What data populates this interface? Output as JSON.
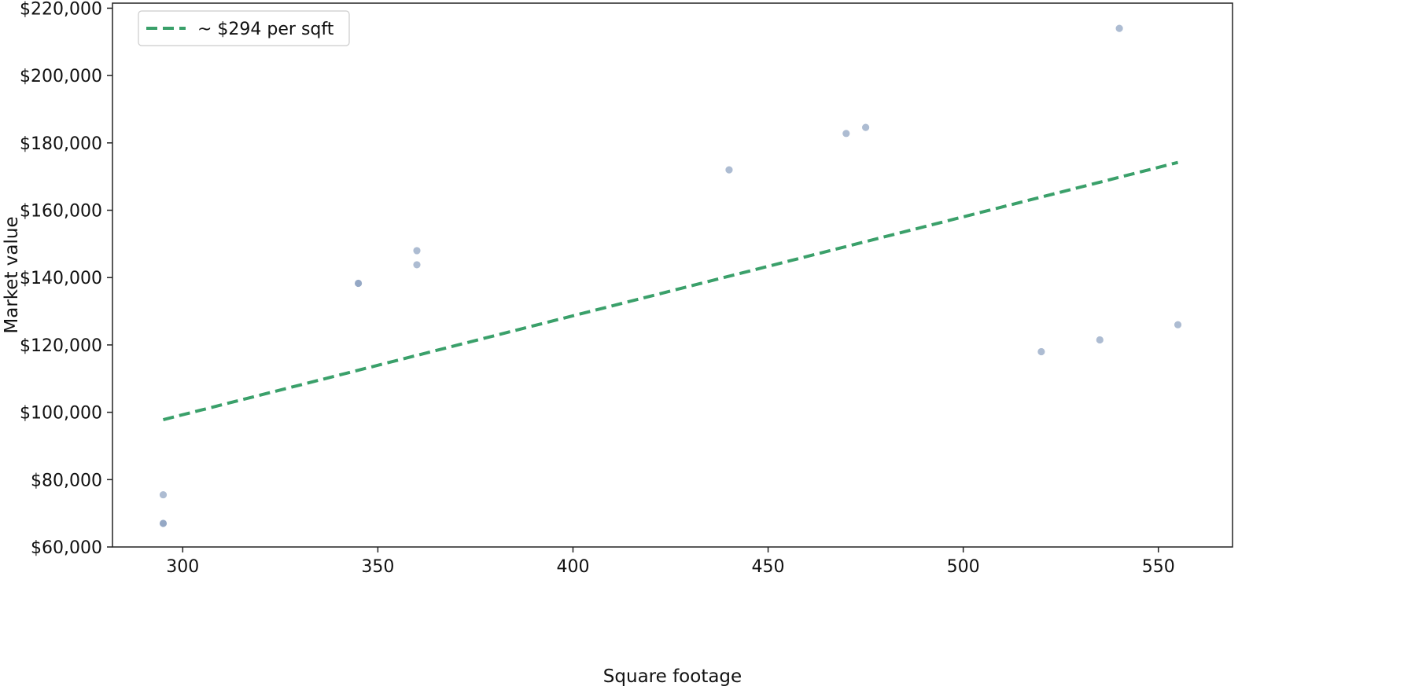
{
  "chart_data": {
    "type": "scatter",
    "title": "",
    "xlabel": "Square footage",
    "ylabel": "Market value",
    "xlim": [
      282,
      569
    ],
    "ylim": [
      60000,
      221500
    ],
    "x_ticks": [
      300,
      350,
      400,
      450,
      500,
      550
    ],
    "x_tick_labels": [
      "300",
      "350",
      "400",
      "450",
      "500",
      "550"
    ],
    "y_ticks": [
      60000,
      80000,
      100000,
      120000,
      140000,
      160000,
      180000,
      200000,
      220000
    ],
    "y_tick_labels": [
      "$60,000",
      "$80,000",
      "$100,000",
      "$120,000",
      "$140,000",
      "$160,000",
      "$180,000",
      "$200,000",
      "$220,000"
    ],
    "grid": false,
    "legend_position": "top-left",
    "series": [
      {
        "type": "scatter",
        "color": "#8a9fbf",
        "points": [
          {
            "x": 295,
            "y": 75500
          },
          {
            "x": 295,
            "y": 67000
          },
          {
            "x": 295,
            "y": 67000
          },
          {
            "x": 345,
            "y": 138300
          },
          {
            "x": 345,
            "y": 138300
          },
          {
            "x": 360,
            "y": 148000
          },
          {
            "x": 360,
            "y": 143800
          },
          {
            "x": 440,
            "y": 172000
          },
          {
            "x": 470,
            "y": 182800
          },
          {
            "x": 475,
            "y": 184600
          },
          {
            "x": 520,
            "y": 118000
          },
          {
            "x": 535,
            "y": 121500
          },
          {
            "x": 540,
            "y": 214000
          },
          {
            "x": 555,
            "y": 126000
          }
        ]
      },
      {
        "type": "line",
        "name": "~ $294 per sqft",
        "color": "#3aa06a",
        "dashed": true,
        "points": [
          {
            "x": 295,
            "y": 97800
          },
          {
            "x": 555,
            "y": 174200
          }
        ]
      }
    ]
  }
}
